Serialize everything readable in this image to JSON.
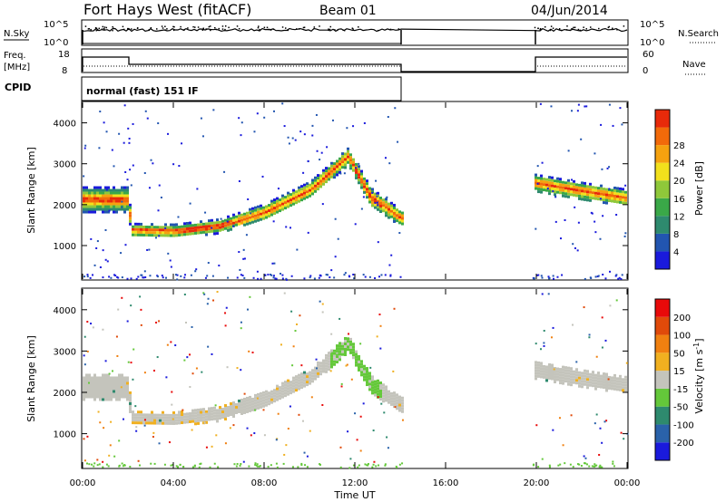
{
  "header": {
    "station": "Fort Hays West (fitACF)",
    "beam": "Beam 01",
    "date": "04/Jun/2014"
  },
  "summary_labels": {
    "nsky": "N.Sky",
    "nsearch": "N.Search",
    "freq_line1": "Freq.",
    "freq_line2": "[MHz]",
    "nave": "Nave",
    "cpid": "CPID",
    "cpid_value": "normal (fast) 151 IF"
  },
  "summary_ticks": {
    "noise_left": [
      "10^5",
      "10^0"
    ],
    "noise_right": [
      "10^5",
      "10^0"
    ],
    "freq_left": [
      "18",
      "8"
    ],
    "nave_right": [
      "60",
      "0"
    ]
  },
  "chart_data": [
    {
      "type": "heatmap",
      "panel": "power",
      "ylabel": "Slant Range [km]",
      "xlim": [
        "00:00",
        "24:00"
      ],
      "ylim": [
        180,
        4500
      ],
      "y_ticks": [
        1000,
        2000,
        3000,
        4000
      ],
      "colorbar": {
        "label": "Power [dB]",
        "ticks": [
          4,
          8,
          12,
          16,
          20,
          24,
          28
        ],
        "colors": [
          "#1a1adc",
          "#2255b0",
          "#2e8a6e",
          "#3aa848",
          "#8fc83a",
          "#f2e01c",
          "#f5a20f",
          "#f26a0a",
          "#e82a0a"
        ]
      },
      "data_gap": [
        "14:05",
        "19:50"
      ],
      "echo_band": [
        {
          "time": "00:00",
          "center_km": 2150,
          "width_km": 600
        },
        {
          "time": "02:00",
          "center_km": 2150,
          "width_km": 600
        },
        {
          "time": "02:05",
          "center_km": 1400,
          "width_km": 320
        },
        {
          "time": "04:00",
          "center_km": 1380,
          "width_km": 320
        },
        {
          "time": "06:00",
          "center_km": 1500,
          "width_km": 340
        },
        {
          "time": "08:00",
          "center_km": 1850,
          "width_km": 380
        },
        {
          "time": "10:00",
          "center_km": 2400,
          "width_km": 380
        },
        {
          "time": "11:40",
          "center_km": 3200,
          "width_km": 420
        },
        {
          "time": "12:40",
          "center_km": 2200,
          "width_km": 460
        },
        {
          "time": "14:00",
          "center_km": 1700,
          "width_km": 380
        },
        {
          "time": "19:55",
          "center_km": 2550,
          "width_km": 420
        },
        {
          "time": "22:00",
          "center_km": 2350,
          "width_km": 420
        },
        {
          "time": "24:00",
          "center_km": 2200,
          "width_km": 380
        }
      ]
    },
    {
      "type": "heatmap",
      "panel": "velocity",
      "ylabel": "Slant Range [km]",
      "xlabel": "Time UT",
      "xlim": [
        "00:00",
        "24:00"
      ],
      "ylim": [
        180,
        4500
      ],
      "y_ticks": [
        1000,
        2000,
        3000,
        4000
      ],
      "x_ticks": [
        "00:00",
        "04:00",
        "08:00",
        "12:00",
        "16:00",
        "20:00",
        "00:00"
      ],
      "colorbar": {
        "label": "Velocity [m s^-1]",
        "ticks": [
          200,
          100,
          50,
          15,
          -15,
          -50,
          -100,
          -200
        ],
        "colors": [
          "#1a1adc",
          "#2a62aa",
          "#2e8a6e",
          "#64c83a",
          "#c4c4bc",
          "#f0b020",
          "#f08010",
          "#e04a0a",
          "#e80a0a"
        ]
      },
      "data_gap": [
        "14:05",
        "19:50"
      ],
      "echo_band_note": "same as power panel; mostly ground-scatter grey, green near 11:00-13:00, orange near 02:00-05:00"
    }
  ]
}
